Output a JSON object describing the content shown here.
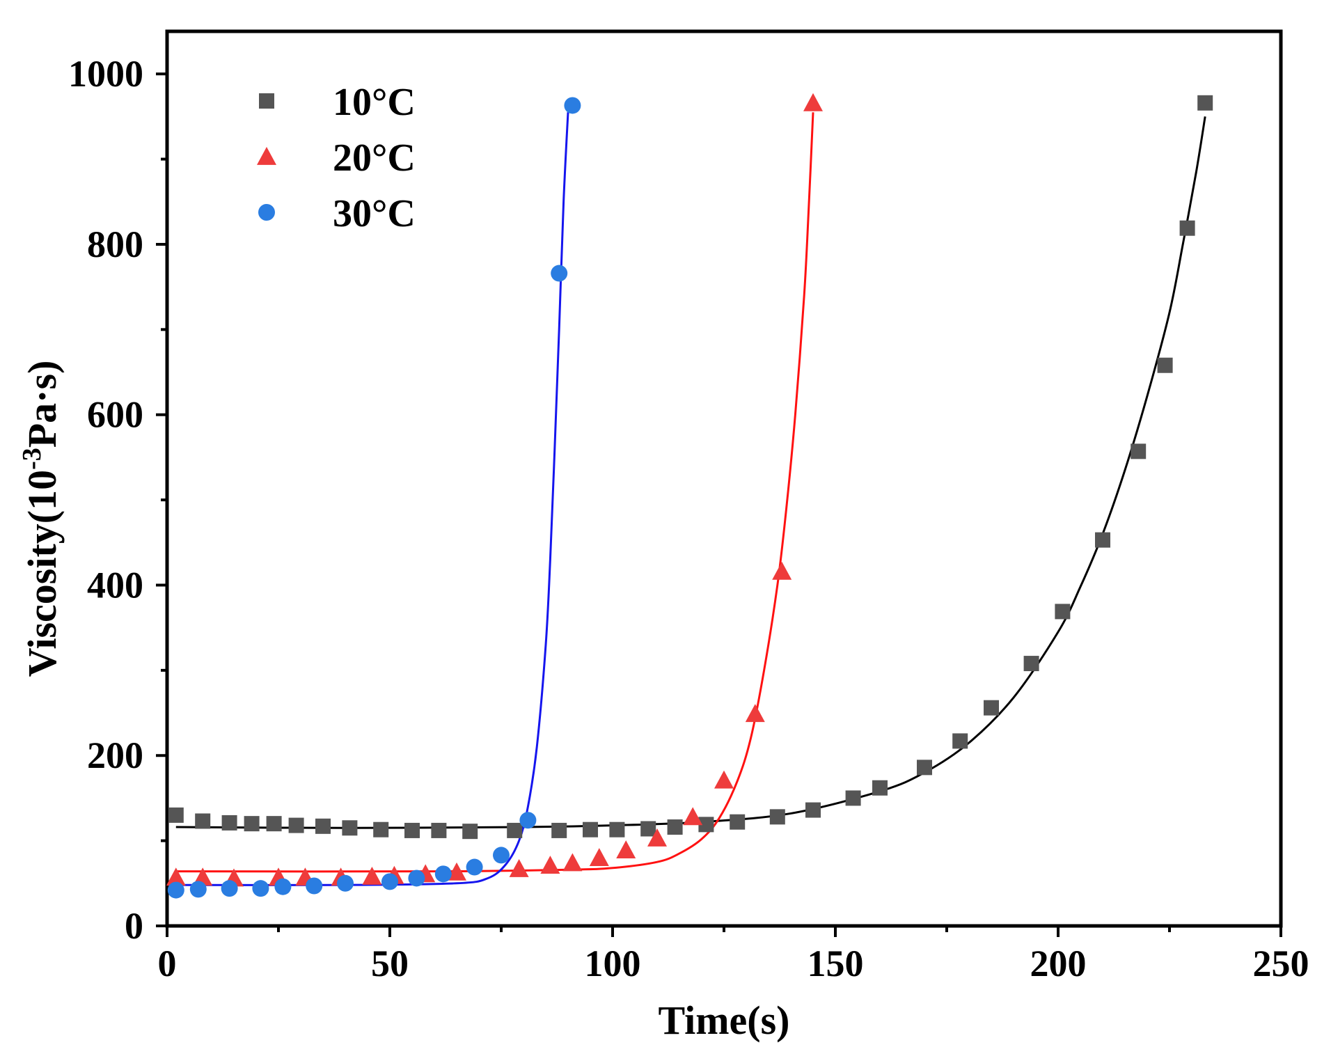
{
  "chart_data": {
    "type": "scatter",
    "title": "",
    "xlabel": "Time(s)",
    "ylabel_prefix": "Viscosity(10",
    "ylabel_exponent": "-3",
    "ylabel_suffix": "Pa·s)",
    "xlim": [
      0,
      250
    ],
    "ylim": [
      0,
      1050
    ],
    "x_ticks": [
      0,
      50,
      100,
      150,
      200,
      250
    ],
    "y_ticks": [
      0,
      200,
      400,
      600,
      800,
      1000
    ],
    "x_tick_labels": [
      "0",
      "50",
      "100",
      "150",
      "200",
      "250"
    ],
    "y_tick_labels": [
      "0",
      "200",
      "400",
      "600",
      "800",
      "1000"
    ],
    "grid": false,
    "legend_position": "top-left",
    "series": [
      {
        "name": "10°C",
        "color": "#555555",
        "line_color": "#000000",
        "marker": "square",
        "points": [
          [
            2,
            130
          ],
          [
            8,
            123
          ],
          [
            14,
            121
          ],
          [
            19,
            120
          ],
          [
            24,
            120
          ],
          [
            29,
            118
          ],
          [
            35,
            117
          ],
          [
            41,
            115
          ],
          [
            48,
            113
          ],
          [
            55,
            112
          ],
          [
            61,
            112
          ],
          [
            68,
            111
          ],
          [
            78,
            112
          ],
          [
            88,
            112
          ],
          [
            95,
            113
          ],
          [
            101,
            113
          ],
          [
            108,
            114
          ],
          [
            114,
            116
          ],
          [
            121,
            119
          ],
          [
            128,
            122
          ],
          [
            137,
            128
          ],
          [
            145,
            136
          ],
          [
            154,
            150
          ],
          [
            160,
            162
          ],
          [
            170,
            186
          ],
          [
            178,
            217
          ],
          [
            185,
            256
          ],
          [
            194,
            308
          ],
          [
            201,
            369
          ],
          [
            210,
            453
          ],
          [
            218,
            557
          ],
          [
            224,
            658
          ],
          [
            229,
            819
          ],
          [
            233,
            966
          ]
        ],
        "fit": [
          [
            2,
            116
          ],
          [
            40,
            115
          ],
          [
            80,
            116
          ],
          [
            100,
            118
          ],
          [
            120,
            122
          ],
          [
            140,
            132
          ],
          [
            160,
            158
          ],
          [
            170,
            180
          ],
          [
            180,
            215
          ],
          [
            190,
            268
          ],
          [
            200,
            345
          ],
          [
            205,
            398
          ],
          [
            210,
            460
          ],
          [
            215,
            535
          ],
          [
            220,
            622
          ],
          [
            225,
            720
          ],
          [
            228,
            800
          ],
          [
            231,
            885
          ],
          [
            233,
            950
          ]
        ]
      },
      {
        "name": "20°C",
        "color": "#ee3b3b",
        "line_color": "#ff1111",
        "marker": "triangle",
        "points": [
          [
            2,
            57
          ],
          [
            8,
            57
          ],
          [
            15,
            56
          ],
          [
            25,
            57
          ],
          [
            31,
            57
          ],
          [
            39,
            57
          ],
          [
            46,
            58
          ],
          [
            51,
            59
          ],
          [
            58,
            61
          ],
          [
            65,
            63
          ],
          [
            79,
            67
          ],
          [
            86,
            71
          ],
          [
            91,
            74
          ],
          [
            97,
            80
          ],
          [
            103,
            89
          ],
          [
            110,
            103
          ],
          [
            118,
            128
          ],
          [
            125,
            171
          ],
          [
            132,
            249
          ],
          [
            138,
            416
          ],
          [
            145,
            966
          ]
        ],
        "fit": [
          [
            2,
            64
          ],
          [
            60,
            64
          ],
          [
            90,
            66
          ],
          [
            100,
            68
          ],
          [
            110,
            75
          ],
          [
            115,
            85
          ],
          [
            120,
            102
          ],
          [
            124,
            127
          ],
          [
            128,
            170
          ],
          [
            131,
            220
          ],
          [
            134,
            300
          ],
          [
            137,
            400
          ],
          [
            139,
            490
          ],
          [
            141,
            600
          ],
          [
            143,
            740
          ],
          [
            144,
            840
          ],
          [
            145,
            955
          ]
        ]
      },
      {
        "name": "30°C",
        "color": "#2a7de1",
        "line_color": "#1515ee",
        "marker": "circle",
        "points": [
          [
            2,
            42
          ],
          [
            7,
            43
          ],
          [
            14,
            44
          ],
          [
            21,
            44
          ],
          [
            26,
            46
          ],
          [
            33,
            47
          ],
          [
            40,
            50
          ],
          [
            50,
            52
          ],
          [
            56,
            56
          ],
          [
            62,
            61
          ],
          [
            69,
            69
          ],
          [
            75,
            83
          ],
          [
            81,
            124
          ],
          [
            88,
            766
          ],
          [
            91,
            963
          ]
        ],
        "fit": [
          [
            2,
            48
          ],
          [
            40,
            48
          ],
          [
            65,
            50
          ],
          [
            72,
            56
          ],
          [
            76,
            72
          ],
          [
            79,
            100
          ],
          [
            81,
            140
          ],
          [
            83,
            210
          ],
          [
            85,
            330
          ],
          [
            86,
            430
          ],
          [
            87,
            560
          ],
          [
            88,
            700
          ],
          [
            89,
            850
          ],
          [
            90,
            955
          ]
        ]
      }
    ]
  }
}
